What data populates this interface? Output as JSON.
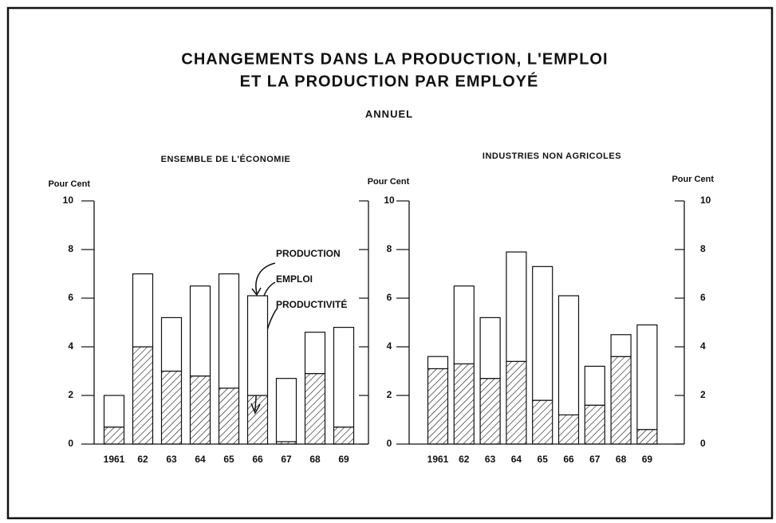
{
  "title": [
    "CHANGEMENTS DANS LA PRODUCTION, L'EMPLOI",
    "ET LA PRODUCTION PAR EMPLOYÉ"
  ],
  "subtitle": "ANNUEL",
  "chart_data": [
    {
      "type": "bar",
      "stacked": true,
      "title": "ENSEMBLE DE L'ÉCONOMIE",
      "ylabel": "Pour Cent",
      "categories": [
        "1961",
        "62",
        "63",
        "64",
        "65",
        "66",
        "67",
        "68",
        "69"
      ],
      "series": [
        {
          "name": "PRODUCTIVITÉ",
          "color": "#222222",
          "hatch": true,
          "values": [
            0.7,
            4.0,
            3.0,
            2.8,
            2.3,
            2.0,
            0.1,
            2.9,
            0.7
          ]
        },
        {
          "name": "EMPLOI",
          "color": "#ffffff",
          "values": [
            1.3,
            3.0,
            2.2,
            3.7,
            4.7,
            4.1,
            2.6,
            1.7,
            4.1
          ]
        }
      ],
      "annotations": [
        "PRODUCTION"
      ],
      "ylim": [
        0,
        10
      ],
      "yticks": [
        0,
        2,
        4,
        6,
        8,
        10
      ],
      "y2lim": [
        0,
        10
      ],
      "y2ticks": [
        0,
        2,
        4,
        6,
        8,
        10
      ]
    },
    {
      "type": "bar",
      "stacked": true,
      "title": "INDUSTRIES NON AGRICOLES",
      "ylabel": "Pour Cent",
      "y2label": "Pour Cent",
      "categories": [
        "1961",
        "62",
        "63",
        "64",
        "65",
        "66",
        "67",
        "68",
        "69"
      ],
      "series": [
        {
          "color": "#222222",
          "hatch": true,
          "values": [
            3.1,
            3.3,
            2.7,
            3.4,
            1.8,
            1.2,
            1.6,
            3.6,
            0.6
          ]
        },
        {
          "color": "#ffffff",
          "values": [
            0.5,
            3.2,
            2.5,
            4.5,
            5.5,
            4.9,
            1.6,
            0.9,
            4.3
          ]
        }
      ],
      "ylim": [
        0,
        10
      ],
      "yticks": [
        0,
        2,
        4,
        6,
        8,
        10
      ],
      "y2lim": [
        0,
        10
      ],
      "y2ticks": [
        0,
        2,
        4,
        6,
        8,
        10
      ]
    }
  ]
}
